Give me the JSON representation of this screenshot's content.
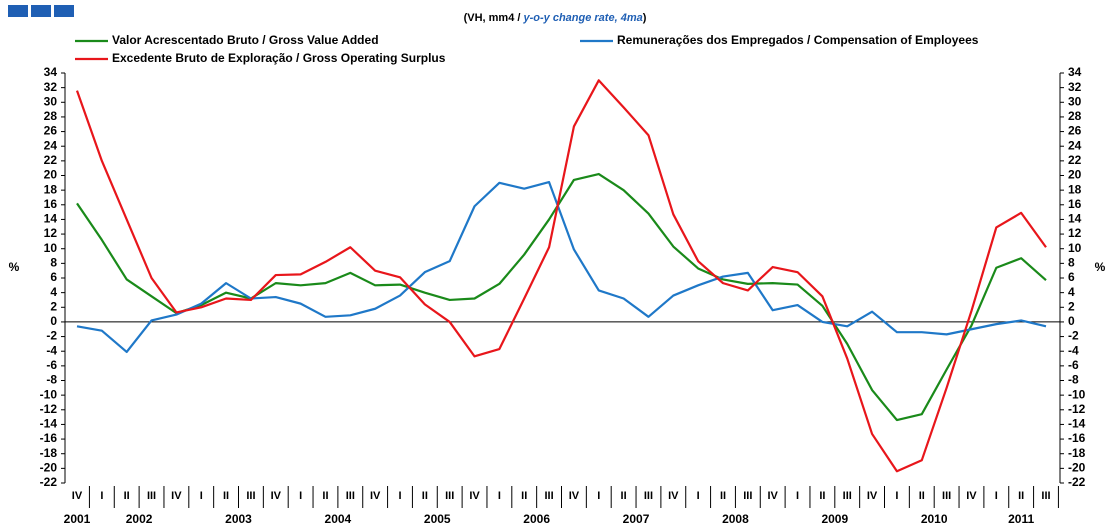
{
  "chart_data": {
    "type": "line",
    "subtitle": [
      "(VH, mm4 / ",
      "y-o-y change rate, 4ma",
      ")"
    ],
    "ylabel": "%",
    "y2label": "%",
    "categories": [
      "IV",
      "I",
      "II",
      "III",
      "IV",
      "I",
      "II",
      "III",
      "IV",
      "I",
      "II",
      "III",
      "IV",
      "I",
      "II",
      "III",
      "IV",
      "I",
      "II",
      "III",
      "IV",
      "I",
      "II",
      "III",
      "IV",
      "I",
      "II",
      "III",
      "IV",
      "I",
      "II",
      "III",
      "IV",
      "I",
      "II",
      "III",
      "IV",
      "I",
      "II",
      "III"
    ],
    "years": [
      "2001",
      "2002",
      "2003",
      "2004",
      "2005",
      "2006",
      "2007",
      "2008",
      "2009",
      "2010",
      "2011"
    ],
    "series": [
      {
        "name": "Valor Acrescentado Bruto / Gross Value Added",
        "color": "#1a8a1a",
        "values": [
          16.2,
          11.2,
          5.8,
          3.5,
          1.2,
          2.3,
          4.0,
          3.2,
          5.3,
          5.0,
          5.3,
          6.7,
          5.0,
          5.1,
          4.0,
          3.0,
          3.2,
          5.2,
          9.2,
          14.0,
          19.4,
          20.2,
          18.0,
          14.8,
          10.3,
          7.3,
          5.8,
          5.2,
          5.3,
          5.1,
          2.2,
          -3.0,
          -9.3,
          -13.4,
          -12.6,
          -6.5,
          -0.5,
          7.4,
          8.7,
          5.7
        ]
      },
      {
        "name": "Remunerações dos Empregados / Compensation of Employees",
        "color": "#1f78c8",
        "values": [
          -0.6,
          -1.2,
          -4.1,
          0.2,
          1.0,
          2.5,
          5.3,
          3.2,
          3.4,
          2.5,
          0.7,
          0.9,
          1.8,
          3.6,
          6.8,
          8.3,
          15.8,
          19.0,
          18.2,
          19.1,
          9.9,
          4.3,
          3.2,
          0.7,
          3.6,
          5.0,
          6.2,
          6.7,
          1.6,
          2.3,
          0.0,
          -0.6,
          1.4,
          -1.4,
          -1.4,
          -1.7,
          -1.0,
          -0.3,
          0.2,
          -0.6
        ]
      },
      {
        "name": "Excedente Bruto de Exploração / Gross Operating Surplus",
        "color": "#e8161b",
        "values": [
          31.6,
          22.0,
          14.0,
          6.0,
          1.3,
          2.0,
          3.2,
          3.0,
          6.4,
          6.5,
          8.2,
          10.2,
          7.0,
          6.1,
          2.4,
          0.0,
          -4.7,
          -3.7,
          3.2,
          10.2,
          26.7,
          33.0,
          29.3,
          25.5,
          14.7,
          8.3,
          5.3,
          4.3,
          7.5,
          6.8,
          3.5,
          -5.0,
          -15.3,
          -20.4,
          -18.9,
          -9.0,
          1.5,
          12.9,
          14.9,
          10.2
        ]
      }
    ],
    "ylim": [
      -22,
      34
    ],
    "yticks": [
      -22,
      -20,
      -18,
      -16,
      -14,
      -12,
      -10,
      -8,
      -6,
      -4,
      -2,
      0,
      2,
      4,
      6,
      8,
      10,
      12,
      14,
      16,
      18,
      20,
      22,
      24,
      26,
      28,
      30,
      32,
      34
    ],
    "y2lim": [
      -22,
      34
    ],
    "y2ticks": [
      -22,
      -20,
      -18,
      -16,
      -14,
      -12,
      -10,
      -8,
      -6,
      -4,
      -2,
      0,
      2,
      4,
      6,
      8,
      10,
      12,
      14,
      16,
      18,
      20,
      22,
      24,
      26,
      28,
      30,
      32,
      34
    ]
  }
}
